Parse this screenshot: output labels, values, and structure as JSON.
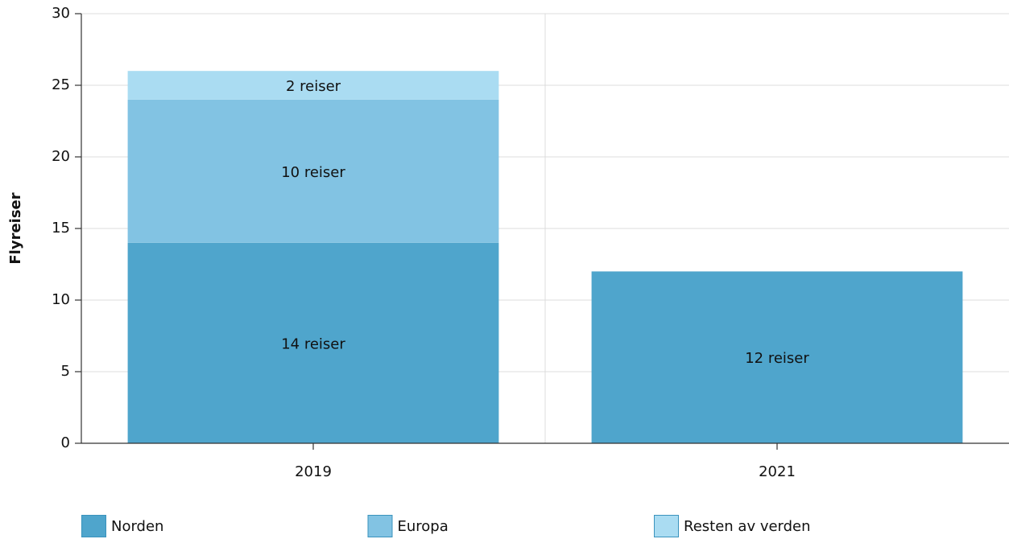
{
  "chart_data": {
    "type": "stacked_bar",
    "ylabel": "Flyreiser",
    "categories": [
      "2019",
      "2021"
    ],
    "series": [
      {
        "name": "Norden",
        "color": "#4fa5cc",
        "values": [
          14,
          12
        ],
        "value_labels": [
          "14 reiser",
          "12 reiser"
        ]
      },
      {
        "name": "Europa",
        "color": "#82c3e3",
        "values": [
          10,
          null
        ],
        "value_labels": [
          "10 reiser",
          null
        ]
      },
      {
        "name": "Resten av verden",
        "color": "#aadcf2",
        "values": [
          2,
          null
        ],
        "value_labels": [
          "2 reiser",
          null
        ]
      }
    ],
    "ylim": [
      0,
      30
    ],
    "yticks": [
      0,
      5,
      10,
      15,
      20,
      25,
      30
    ],
    "grid": true,
    "legend": "bottom"
  }
}
